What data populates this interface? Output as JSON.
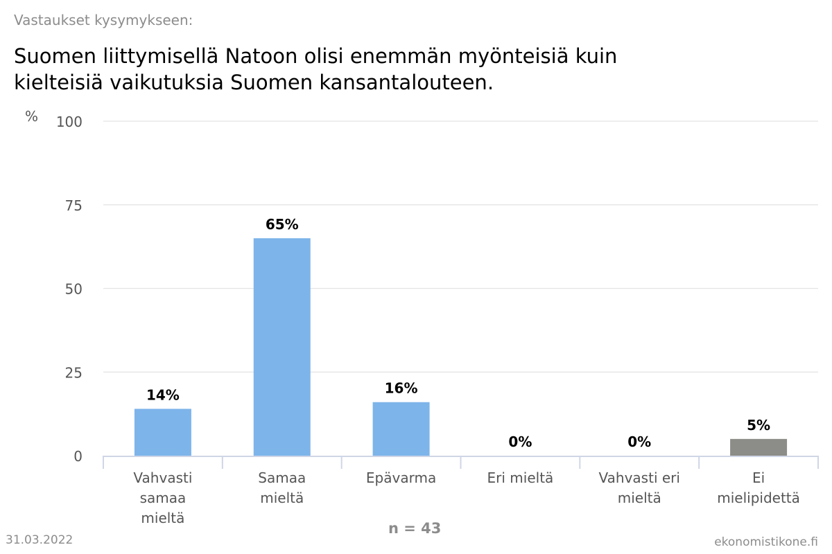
{
  "header": {
    "subtitle": "Vastaukset kysymykseen:",
    "title_lines": [
      "Suomen liittymisellä Natoon olisi enemmän myönteisiä kuin",
      "kielteisiä vaikutuksia Suomen kansantalouteen."
    ]
  },
  "chart_data": {
    "type": "bar",
    "ylabel": "%",
    "ylim": [
      0,
      100
    ],
    "yticks": [
      0,
      25,
      50,
      75,
      100
    ],
    "grid": true,
    "categories": [
      [
        "Vahvasti",
        "samaa",
        "mieltä"
      ],
      [
        "Samaa",
        "mieltä"
      ],
      [
        "Epävarma"
      ],
      [
        "Eri mieltä"
      ],
      [
        "Vahvasti eri",
        "mieltä"
      ],
      [
        "Ei",
        "mielipidettä"
      ]
    ],
    "values": [
      14,
      65,
      16,
      0,
      0,
      5
    ],
    "data_labels": [
      "14%",
      "65%",
      "16%",
      "0%",
      "0%",
      "5%"
    ],
    "colors": [
      "#7db4ea",
      "#7db4ea",
      "#7db4ea",
      "#7db4ea",
      "#7db4ea",
      "#8c8c88"
    ]
  },
  "footer": {
    "n_label": "n = 43",
    "date": "31.03.2022",
    "source": "ekonomistikone.fi"
  }
}
